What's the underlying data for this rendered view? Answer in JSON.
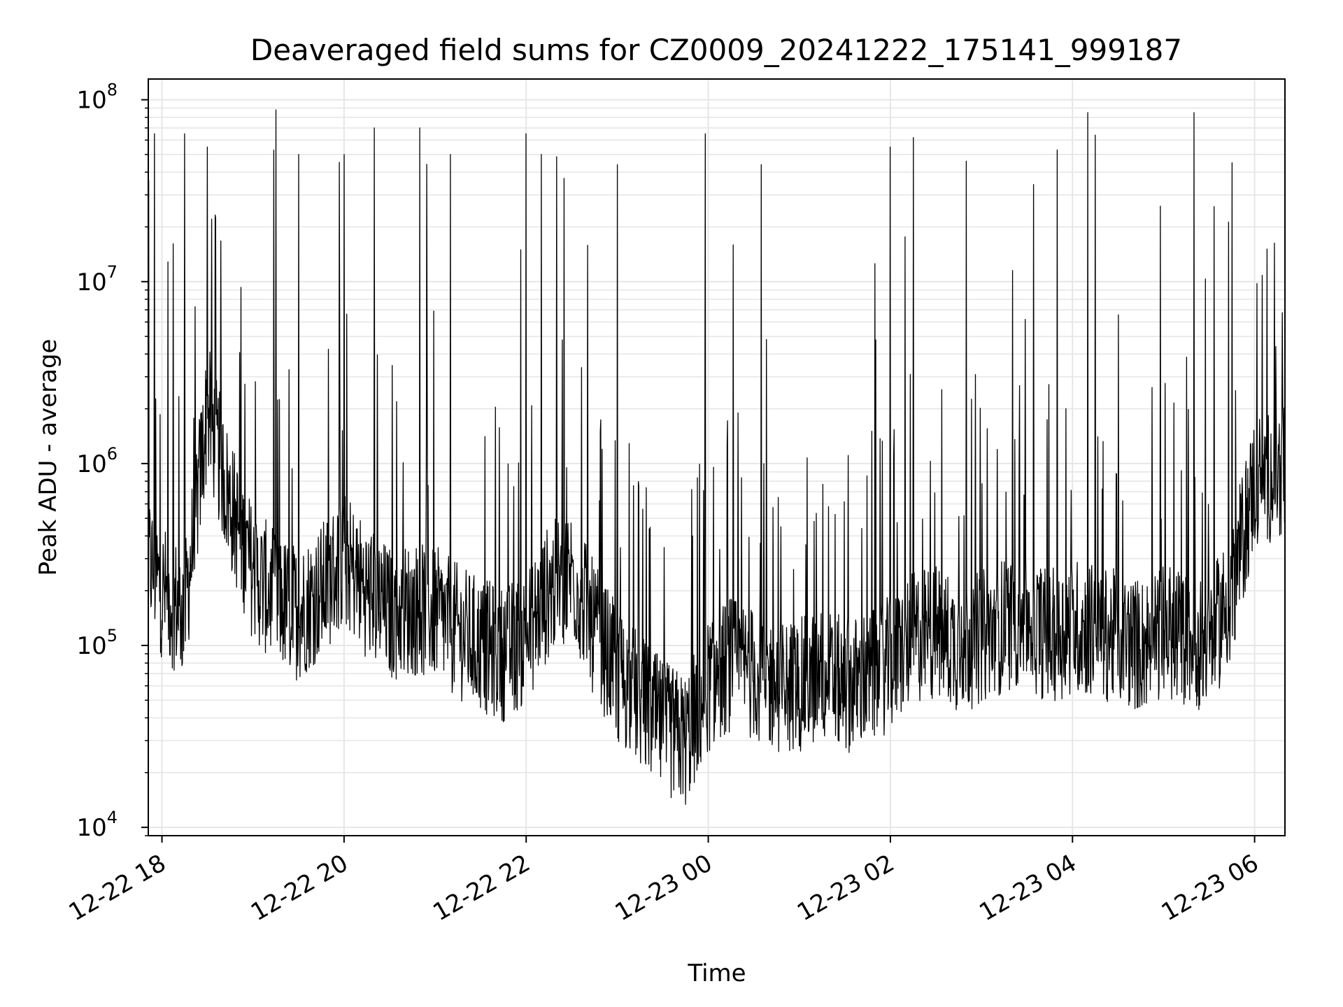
{
  "chart_data": {
    "type": "line",
    "title": "Deaveraged field sums for CZ0009_20241222_175141_999187",
    "xlabel": "Time",
    "ylabel": "Peak ADU - average",
    "yscale": "log",
    "ylim": [
      9000,
      130000000
    ],
    "xlim": [
      "2024-12-22T17:51",
      "2024-12-23T06:20"
    ],
    "y_ticks": [
      {
        "base": "10",
        "exp": "4",
        "value": 10000
      },
      {
        "base": "10",
        "exp": "5",
        "value": 100000
      },
      {
        "base": "10",
        "exp": "6",
        "value": 1000000
      },
      {
        "base": "10",
        "exp": "7",
        "value": 10000000
      },
      {
        "base": "10",
        "exp": "8",
        "value": 100000000
      }
    ],
    "x_ticks": [
      {
        "label": "12-22 18",
        "time": "2024-12-22T18:00"
      },
      {
        "label": "12-22 20",
        "time": "2024-12-22T20:00"
      },
      {
        "label": "12-22 22",
        "time": "2024-12-22T22:00"
      },
      {
        "label": "12-23 00",
        "time": "2024-12-23T00:00"
      },
      {
        "label": "12-23 02",
        "time": "2024-12-23T02:00"
      },
      {
        "label": "12-23 04",
        "time": "2024-12-23T04:00"
      },
      {
        "label": "12-23 06",
        "time": "2024-12-23T06:00"
      }
    ],
    "grid": true,
    "line_color": "#000000",
    "grid_color": "#e6e6e6",
    "series": [
      {
        "x": [
          "2024-12-22T17:51",
          "2024-12-22T18:00",
          "2024-12-22T18:15",
          "2024-12-22T18:30",
          "2024-12-22T18:45",
          "2024-12-22T19:00",
          "2024-12-22T19:15",
          "2024-12-22T19:30",
          "2024-12-22T19:45",
          "2024-12-22T20:00",
          "2024-12-22T20:15",
          "2024-12-22T20:30",
          "2024-12-22T20:45",
          "2024-12-22T21:00",
          "2024-12-22T21:15",
          "2024-12-22T21:30",
          "2024-12-22T21:45",
          "2024-12-22T22:00",
          "2024-12-22T22:15",
          "2024-12-22T22:30",
          "2024-12-22T22:45",
          "2024-12-22T23:00",
          "2024-12-22T23:15",
          "2024-12-22T23:30",
          "2024-12-22T23:45",
          "2024-12-23T00:00",
          "2024-12-23T00:15",
          "2024-12-23T00:30",
          "2024-12-23T00:45",
          "2024-12-23T01:00",
          "2024-12-23T01:15",
          "2024-12-23T01:30",
          "2024-12-23T01:45",
          "2024-12-23T02:00",
          "2024-12-23T02:15",
          "2024-12-23T02:30",
          "2024-12-23T02:45",
          "2024-12-23T03:00",
          "2024-12-23T03:15",
          "2024-12-23T03:30",
          "2024-12-23T03:45",
          "2024-12-23T04:00",
          "2024-12-23T04:15",
          "2024-12-23T04:30",
          "2024-12-23T04:45",
          "2024-12-23T05:00",
          "2024-12-23T05:15",
          "2024-12-23T05:30",
          "2024-12-23T05:45",
          "2024-12-23T06:00",
          "2024-12-23T06:15"
        ],
        "y": [
          300000,
          200000,
          150000,
          2000000,
          600000,
          250000,
          180000,
          150000,
          200000,
          300000,
          200000,
          150000,
          160000,
          150000,
          120000,
          100000,
          90000,
          110000,
          200000,
          250000,
          120000,
          70000,
          50000,
          35000,
          30000,
          60000,
          80000,
          70000,
          60000,
          60000,
          70000,
          60000,
          65000,
          80000,
          110000,
          120000,
          100000,
          110000,
          130000,
          140000,
          110000,
          130000,
          120000,
          110000,
          100000,
          120000,
          110000,
          100000,
          200000,
          800000,
          900000
        ],
        "spikes": [
          {
            "time": "2024-12-22T17:55",
            "value": 65000000
          },
          {
            "time": "2024-12-22T18:15",
            "value": 65000000
          },
          {
            "time": "2024-12-22T18:30",
            "value": 55000000
          },
          {
            "time": "2024-12-22T19:15",
            "value": 88000000
          },
          {
            "time": "2024-12-22T19:30",
            "value": 50000000
          },
          {
            "time": "2024-12-22T20:00",
            "value": 50000000
          },
          {
            "time": "2024-12-22T20:20",
            "value": 70000000
          },
          {
            "time": "2024-12-22T20:50",
            "value": 70000000
          },
          {
            "time": "2024-12-22T21:10",
            "value": 50000000
          },
          {
            "time": "2024-12-22T22:00",
            "value": 65000000
          },
          {
            "time": "2024-12-22T22:10",
            "value": 50000000
          },
          {
            "time": "2024-12-22T22:25",
            "value": 37000000
          },
          {
            "time": "2024-12-22T23:00",
            "value": 44000000
          },
          {
            "time": "2024-12-22T23:58",
            "value": 65000000
          },
          {
            "time": "2024-12-23T00:35",
            "value": 44000000
          },
          {
            "time": "2024-12-23T02:00",
            "value": 55000000
          },
          {
            "time": "2024-12-23T02:15",
            "value": 62000000
          },
          {
            "time": "2024-12-23T02:50",
            "value": 46000000
          },
          {
            "time": "2024-12-23T03:50",
            "value": 53000000
          },
          {
            "time": "2024-12-23T04:10",
            "value": 85000000
          },
          {
            "time": "2024-12-23T04:15",
            "value": 64000000
          },
          {
            "time": "2024-12-23T05:20",
            "value": 85000000
          },
          {
            "time": "2024-12-23T05:45",
            "value": 45000000
          }
        ]
      }
    ]
  }
}
